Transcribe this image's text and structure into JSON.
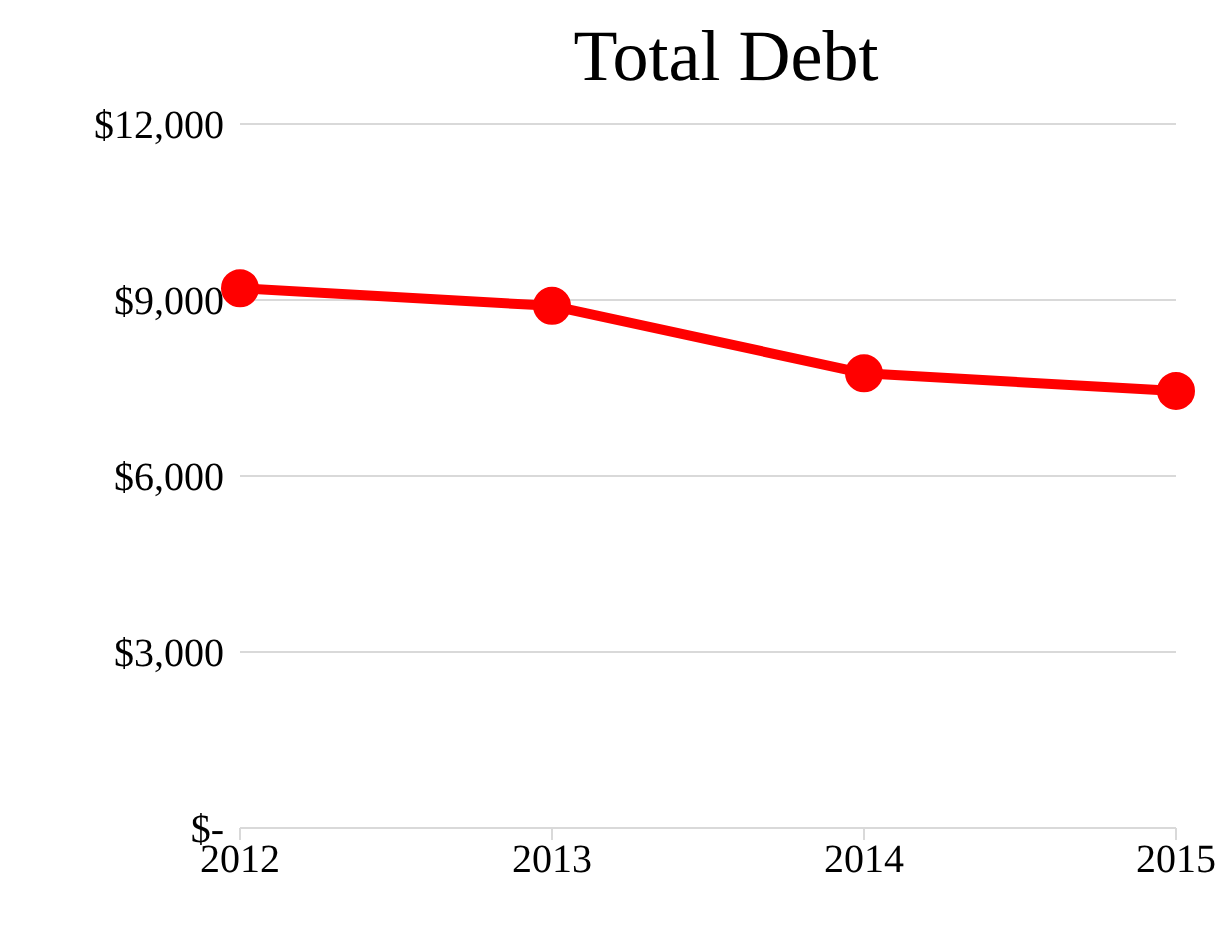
{
  "chart_data": {
    "type": "line",
    "title": "Total Debt",
    "categories": [
      "2012",
      "2013",
      "2014",
      "2015"
    ],
    "series": [
      {
        "color": "#ff0000",
        "values": [
          9200,
          8900,
          7750,
          7450
        ]
      }
    ],
    "ylim": [
      0,
      12000
    ],
    "yticks": [
      {
        "value": 0,
        "label": "$-"
      },
      {
        "value": 3000,
        "label": "$3,000"
      },
      {
        "value": 6000,
        "label": "$6,000"
      },
      {
        "value": 9000,
        "label": "$9,000"
      },
      {
        "value": 12000,
        "label": "$12,000"
      }
    ],
    "grid": "y",
    "marker": "circle",
    "legend": false
  }
}
